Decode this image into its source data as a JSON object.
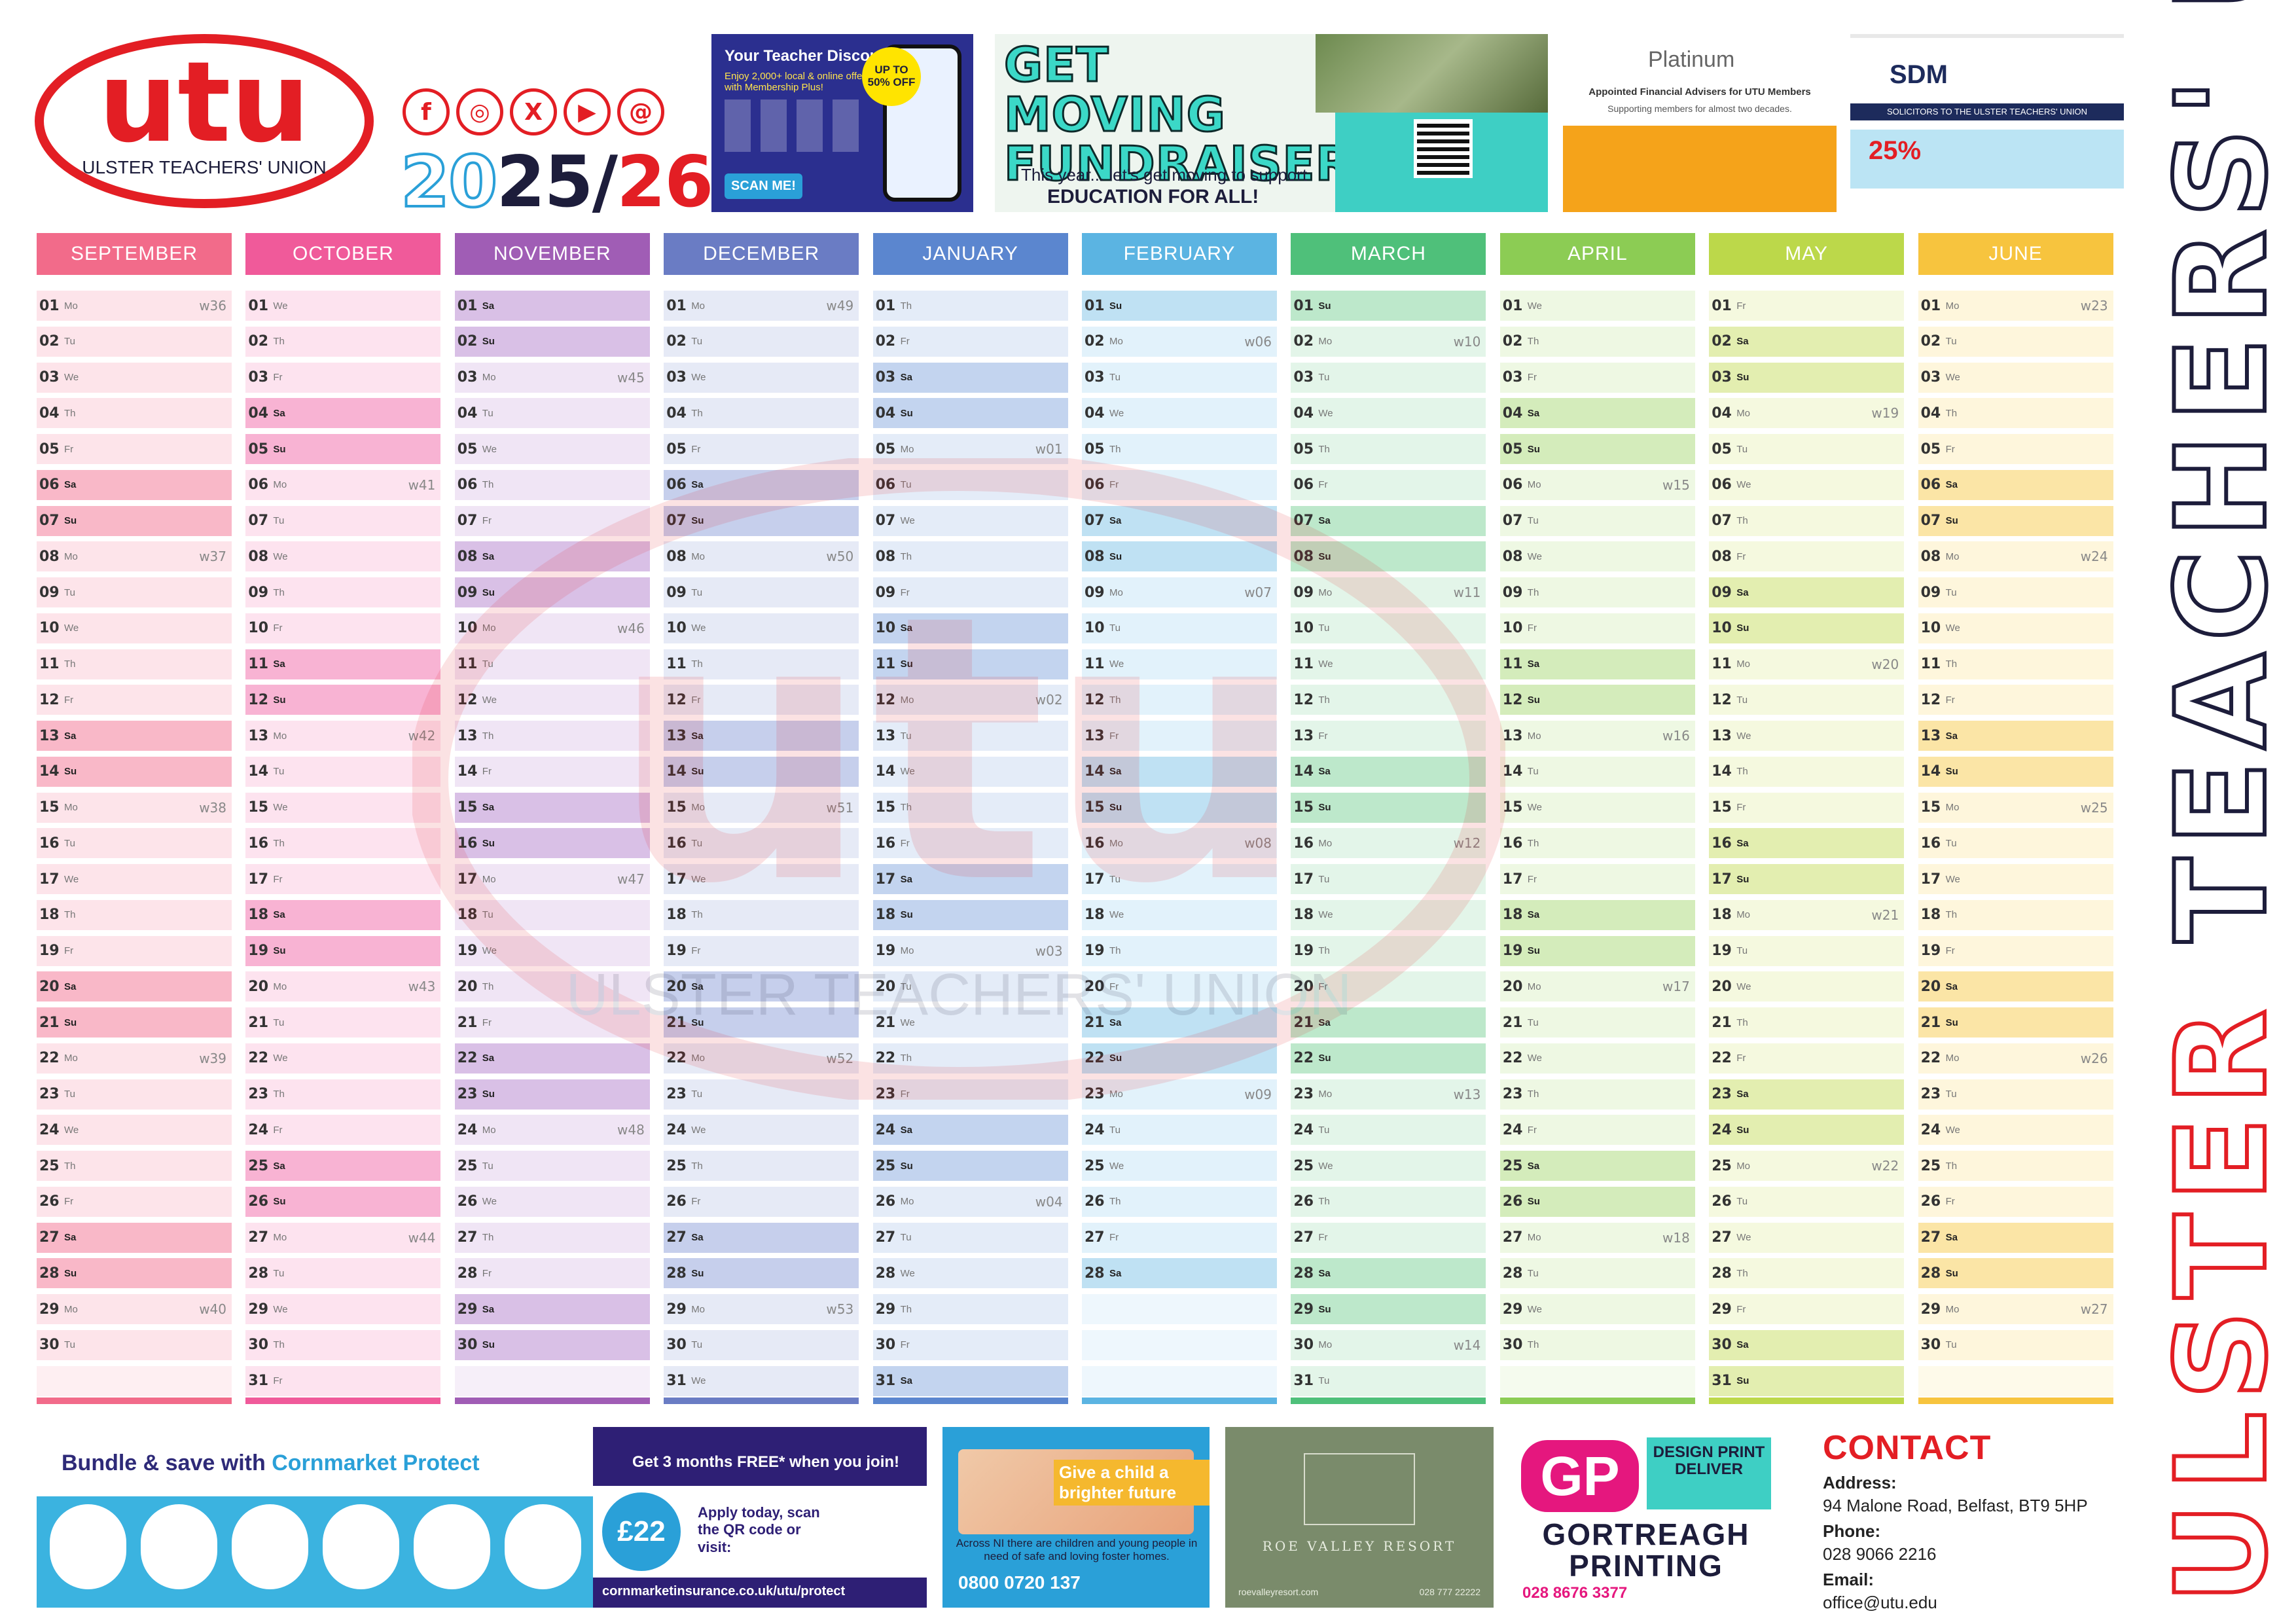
{
  "header": {
    "logo_text": "utu",
    "logo_caption": "ULSTER TEACHERS' UNION",
    "year_start": "20",
    "year_mid": "25/",
    "year_end": "26",
    "social_icons": [
      "facebook-icon",
      "instagram-icon",
      "x-icon",
      "youtube-icon",
      "threads-icon"
    ]
  },
  "ads_top": {
    "discounts": {
      "title": "Your Teacher Discounts",
      "subtitle": "Enjoy 2,000+ local & online offers with Membership Plus!",
      "badge": "UP TO 50% OFF",
      "scan": "SCAN ME!"
    },
    "fundraiser": {
      "title": "GET MOVING FUNDRAISER",
      "line": "This year... let's get moving to support",
      "bold_line": "EDUCATION FOR ALL!"
    },
    "platinum": {
      "name": "Platinum",
      "subtitle": "Appointed Financial Advisers for UTU Members",
      "subtitle2": "Supporting members for almost two decades."
    },
    "sdm": {
      "name": "SDM",
      "bar": "SOLICITORS TO THE ULSTER TEACHERS' UNION",
      "discount": "25%"
    }
  },
  "colors": {
    "brand_red": "#e31e24",
    "navy": "#1d1d3b"
  },
  "months": [
    {
      "name": "SEPTEMBER",
      "head": "#f26b8a",
      "light": "#fde4ea",
      "wkd": "#f9b8c8",
      "days": 30,
      "start": 0,
      "weeks": [
        36,
        37,
        38,
        39,
        40
      ]
    },
    {
      "name": "OCTOBER",
      "head": "#f05a9a",
      "light": "#fde3ef",
      "wkd": "#f8b3d3",
      "days": 31,
      "start": 2,
      "weeks": [
        41,
        42,
        43,
        44
      ]
    },
    {
      "name": "NOVEMBER",
      "head": "#a05db5",
      "light": "#f0e5f5",
      "wkd": "#d9c0e6",
      "days": 30,
      "start": 5,
      "weeks": [
        45,
        46,
        47,
        48
      ]
    },
    {
      "name": "DECEMBER",
      "head": "#6a7cc4",
      "light": "#e6eaf6",
      "wkd": "#c6cfec",
      "days": 31,
      "start": 0,
      "weeks": [
        49,
        50,
        51,
        52,
        53
      ]
    },
    {
      "name": "JANUARY",
      "head": "#5b86cf",
      "light": "#e4ecf8",
      "wkd": "#c3d4ef",
      "days": 31,
      "start": 3,
      "weeks": [
        "01",
        "02",
        "03",
        "04",
        "05"
      ]
    },
    {
      "name": "FEBRUARY",
      "head": "#5bb4e2",
      "light": "#e2f2fb",
      "wkd": "#bfe1f3",
      "days": 28,
      "start": 6,
      "weeks": [
        "06",
        "07",
        "08",
        "09"
      ]
    },
    {
      "name": "MARCH",
      "head": "#4fc07a",
      "light": "#e3f5e9",
      "wkd": "#bde8cb",
      "days": 31,
      "start": 6,
      "weeks": [
        10,
        11,
        12,
        13,
        14
      ]
    },
    {
      "name": "APRIL",
      "head": "#8ccc54",
      "light": "#eef8e3",
      "wkd": "#d4ecbb",
      "days": 30,
      "start": 2,
      "weeks": [
        15,
        16,
        17,
        18
      ]
    },
    {
      "name": "MAY",
      "head": "#bcd84a",
      "light": "#f5f9df",
      "wkd": "#e3eeb0",
      "days": 31,
      "start": 4,
      "weeks": [
        19,
        20,
        21,
        22
      ]
    },
    {
      "name": "JUNE",
      "head": "#f7c43e",
      "light": "#fef6dc",
      "wkd": "#fbe5a6",
      "days": 30,
      "start": 0,
      "weeks": [
        23,
        24,
        25,
        26,
        27
      ]
    }
  ],
  "weekdays": [
    "Mo",
    "Tu",
    "We",
    "Th",
    "Fr",
    "Sa",
    "Su"
  ],
  "watermark": "ULSTER TEACHERS' UNION",
  "side_text_red": "ULSTER",
  "side_text_navy": "TEACHERS' UNION",
  "ads_bottom": {
    "cornmarket": {
      "lead": "Bundle & save with ",
      "brand": "Cornmarket Protect"
    },
    "insurance": {
      "title": "Get 3 months FREE* when you join!",
      "price": "£22",
      "apply": "Apply today, scan the QR code or visit:",
      "url": "cornmarketinsurance.co.uk/utu/protect"
    },
    "fostering": {
      "tag": "Give a child a brighter future",
      "text": "Across NI there are children and young people in need of safe and loving foster homes.",
      "phone": "0800 0720 137"
    },
    "roe_valley": {
      "name": "ROE VALLEY RESORT",
      "site": "roevalleyresort.com",
      "phone": "028 777 22222"
    },
    "gortreagh": {
      "logo": "GP",
      "strap": "DESIGN PRINT DELIVER",
      "name": "GORTREAGH PRINTING",
      "phone": "028 8676 3377"
    }
  },
  "contact": {
    "heading": "CONTACT",
    "address_label": "Address:",
    "address": "94 Malone Road, Belfast, BT9 5HP",
    "phone_label": "Phone:",
    "phone": "028 9066 2216",
    "email_label": "Email:",
    "email": "office@utu.edu"
  }
}
